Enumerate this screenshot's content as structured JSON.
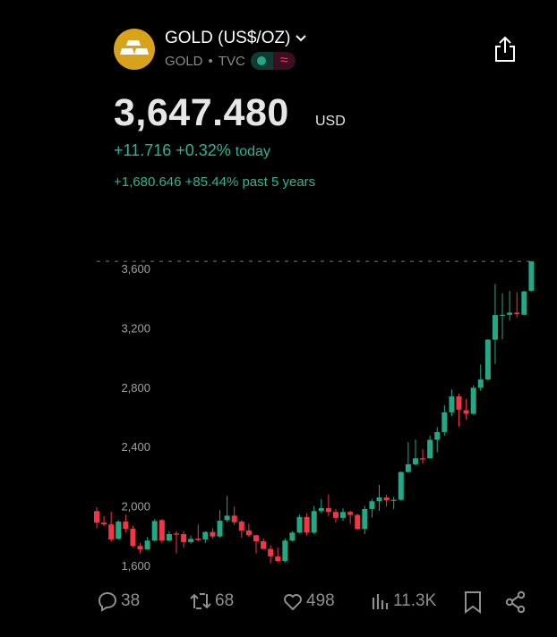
{
  "header": {
    "title": "GOLD (US$/OZ)",
    "symbol": "GOLD",
    "separator": "•",
    "exchange": "TVC",
    "logo_icon": "gold-bars-icon",
    "accent": "#d9a21b"
  },
  "quote": {
    "price": "3,647.480",
    "currency": "USD",
    "change_today": "+11.716 +0.32%",
    "today_label": "today",
    "change_5y": "+1,680.646 +85.44% past 5 years"
  },
  "colors": {
    "up": "#22a884",
    "down": "#f23645",
    "text_green": "#2bb593"
  },
  "chart_data": {
    "type": "candlestick",
    "ylim": [
      1560,
      3680
    ],
    "yticks": [
      "1,600",
      "2,000",
      "2,400",
      "2,800",
      "3,200",
      "3,600"
    ],
    "ytick_values": [
      1600,
      2000,
      2400,
      2800,
      3200,
      3600
    ],
    "last_price_line": 3647.48,
    "grid": false,
    "ohlc": [
      [
        1966,
        1992,
        1851,
        1888
      ],
      [
        1888,
        1932,
        1862,
        1876
      ],
      [
        1876,
        1962,
        1761,
        1775
      ],
      [
        1779,
        1905,
        1775,
        1895
      ],
      [
        1895,
        1942,
        1821,
        1847
      ],
      [
        1847,
        1867,
        1721,
        1731
      ],
      [
        1731,
        1751,
        1681,
        1707
      ],
      [
        1707,
        1791,
        1705,
        1767
      ],
      [
        1767,
        1912,
        1761,
        1899
      ],
      [
        1905,
        1912,
        1751,
        1767
      ],
      [
        1767,
        1831,
        1761,
        1811
      ],
      [
        1815,
        1831,
        1681,
        1807
      ],
      [
        1811,
        1831,
        1721,
        1757
      ],
      [
        1757,
        1801,
        1747,
        1779
      ],
      [
        1781,
        1875,
        1761,
        1771
      ],
      [
        1775,
        1831,
        1751,
        1825
      ],
      [
        1825,
        1851,
        1781,
        1795
      ],
      [
        1795,
        1972,
        1787,
        1901
      ],
      [
        1905,
        2068,
        1891,
        1935
      ],
      [
        1935,
        1996,
        1871,
        1891
      ],
      [
        1895,
        1905,
        1787,
        1835
      ],
      [
        1835,
        1881,
        1791,
        1803
      ],
      [
        1803,
        1807,
        1681,
        1763
      ],
      [
        1763,
        1781,
        1707,
        1711
      ],
      [
        1711,
        1735,
        1614,
        1661
      ],
      [
        1661,
        1721,
        1620,
        1630
      ],
      [
        1630,
        1781,
        1620,
        1767
      ],
      [
        1767,
        1831,
        1761,
        1821
      ],
      [
        1821,
        1942,
        1815,
        1926
      ],
      [
        1926,
        1952,
        1801,
        1821
      ],
      [
        1821,
        2002,
        1811,
        1966
      ],
      [
        1966,
        2046,
        1952,
        1986
      ],
      [
        1986,
        2078,
        1932,
        1960
      ],
      [
        1960,
        1980,
        1888,
        1920
      ],
      [
        1920,
        1984,
        1901,
        1960
      ],
      [
        1960,
        1968,
        1881,
        1940
      ],
      [
        1940,
        1948,
        1841,
        1845
      ],
      [
        1845,
        2002,
        1811,
        1980
      ],
      [
        1980,
        2048,
        1922,
        2032
      ],
      [
        2032,
        2143,
        1968,
        2058
      ],
      [
        2058,
        2076,
        1996,
        2038
      ],
      [
        2038,
        2062,
        1980,
        2042
      ],
      [
        2042,
        2233,
        2036,
        2229
      ],
      [
        2229,
        2430,
        2223,
        2281
      ],
      [
        2281,
        2448,
        2273,
        2321
      ],
      [
        2321,
        2384,
        2285,
        2313
      ],
      [
        2321,
        2474,
        2318,
        2446
      ],
      [
        2446,
        2531,
        2362,
        2498
      ],
      [
        2498,
        2679,
        2474,
        2631
      ],
      [
        2631,
        2786,
        2605,
        2738
      ],
      [
        2738,
        2756,
        2535,
        2649
      ],
      [
        2645,
        2722,
        2583,
        2621
      ],
      [
        2621,
        2812,
        2615,
        2796
      ],
      [
        2796,
        2953,
        2776,
        2852
      ],
      [
        2852,
        3124,
        2846,
        3120
      ],
      [
        3120,
        3495,
        2957,
        3286
      ],
      [
        3284,
        3433,
        3122,
        3288
      ],
      [
        3288,
        3449,
        3248,
        3302
      ],
      [
        3302,
        3439,
        3268,
        3292
      ],
      [
        3288,
        3449,
        3282,
        3445
      ],
      [
        3449,
        3650,
        3445,
        3647
      ]
    ]
  },
  "footer": {
    "replies": "38",
    "reposts": "68",
    "likes": "498",
    "views": "11.3K"
  }
}
